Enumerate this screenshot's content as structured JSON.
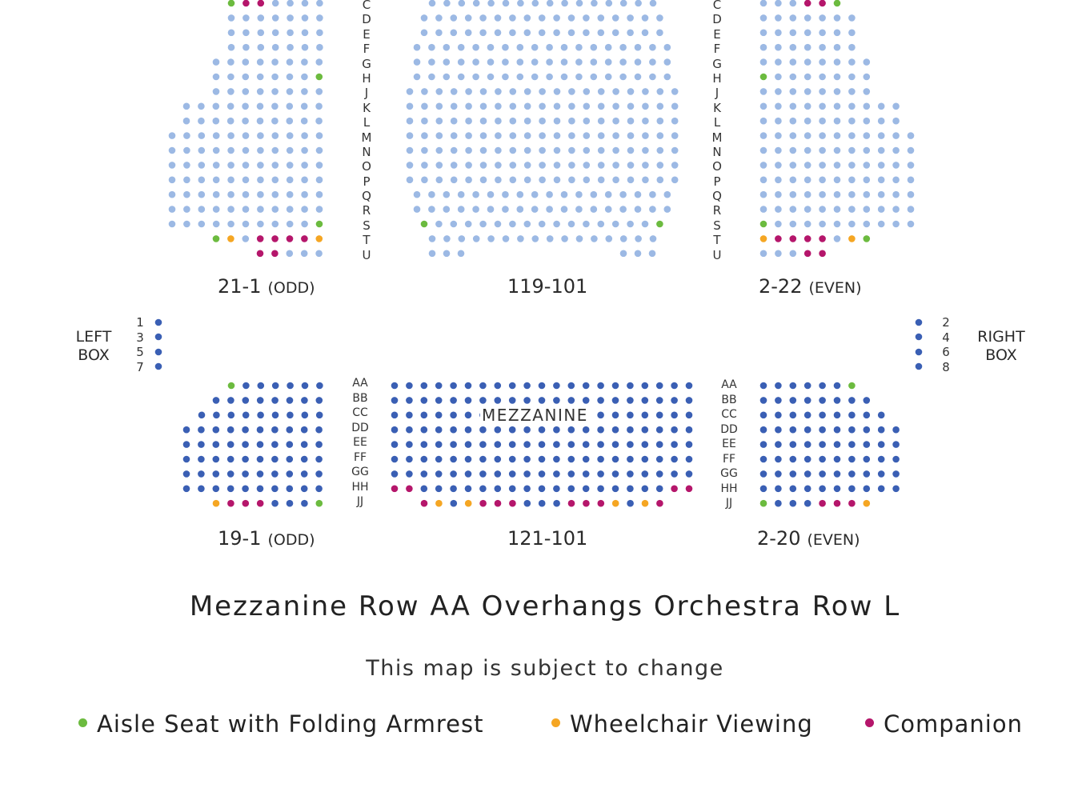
{
  "colors": {
    "orchestra_seat": "#9cb9e4",
    "mezzanine_seat": "#3a5fb4",
    "aisle": "#6cbb3f",
    "wheelchair": "#f5a623",
    "companion": "#b5166b"
  },
  "orchestra": {
    "row_labels": [
      "C",
      "D",
      "E",
      "F",
      "G",
      "H",
      "J",
      "K",
      "L",
      "M",
      "N",
      "O",
      "P",
      "Q",
      "R",
      "S",
      "T",
      "U"
    ],
    "left_section_label": "21-1",
    "left_section_parity": "(ODD)",
    "center_section_label": "119-101",
    "right_section_label": "2-22",
    "right_section_parity": "(EVEN)"
  },
  "mezzanine": {
    "row_labels": [
      "AA",
      "BB",
      "CC",
      "DD",
      "EE",
      "FF",
      "GG",
      "HH",
      "JJ"
    ],
    "center_label": "MEZZANINE",
    "left_section_label": "19-1",
    "left_section_parity": "(ODD)",
    "center_section_label": "121-101",
    "right_section_label": "2-20",
    "right_section_parity": "(EVEN)"
  },
  "boxes": {
    "left": {
      "name_line1": "LEFT",
      "name_line2": "BOX",
      "seats": [
        "1",
        "3",
        "5",
        "7"
      ]
    },
    "right": {
      "name_line1": "RIGHT",
      "name_line2": "BOX",
      "seats": [
        "2",
        "4",
        "6",
        "8"
      ]
    }
  },
  "notes": {
    "overhang": "Mezzanine Row AA Overhangs Orchestra Row L",
    "disclaimer": "This map is subject to change"
  },
  "legend": {
    "aisle": "Aisle Seat with Folding Armrest",
    "wheelchair": "Wheelchair Viewing",
    "companion": "Companion"
  }
}
